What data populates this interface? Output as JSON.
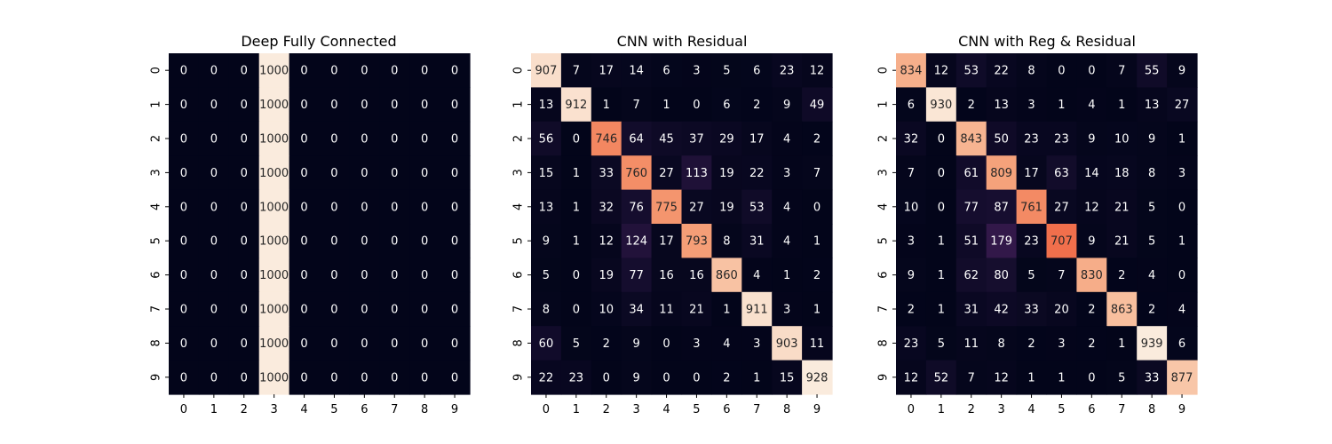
{
  "chart_data": [
    {
      "type": "heatmap",
      "title": "Deep Fully Connected",
      "x_tick_labels": [
        "0",
        "1",
        "2",
        "3",
        "4",
        "5",
        "6",
        "7",
        "8",
        "9"
      ],
      "y_tick_labels": [
        "0",
        "1",
        "2",
        "3",
        "4",
        "5",
        "6",
        "7",
        "8",
        "9"
      ],
      "colormap": "rocket",
      "value_range": [
        0,
        1000
      ],
      "annotated": true,
      "matrix": [
        [
          0,
          0,
          0,
          1000,
          0,
          0,
          0,
          0,
          0,
          0
        ],
        [
          0,
          0,
          0,
          1000,
          0,
          0,
          0,
          0,
          0,
          0
        ],
        [
          0,
          0,
          0,
          1000,
          0,
          0,
          0,
          0,
          0,
          0
        ],
        [
          0,
          0,
          0,
          1000,
          0,
          0,
          0,
          0,
          0,
          0
        ],
        [
          0,
          0,
          0,
          1000,
          0,
          0,
          0,
          0,
          0,
          0
        ],
        [
          0,
          0,
          0,
          1000,
          0,
          0,
          0,
          0,
          0,
          0
        ],
        [
          0,
          0,
          0,
          1000,
          0,
          0,
          0,
          0,
          0,
          0
        ],
        [
          0,
          0,
          0,
          1000,
          0,
          0,
          0,
          0,
          0,
          0
        ],
        [
          0,
          0,
          0,
          1000,
          0,
          0,
          0,
          0,
          0,
          0
        ],
        [
          0,
          0,
          0,
          1000,
          0,
          0,
          0,
          0,
          0,
          0
        ]
      ]
    },
    {
      "type": "heatmap",
      "title": "CNN with Residual",
      "x_tick_labels": [
        "0",
        "1",
        "2",
        "3",
        "4",
        "5",
        "6",
        "7",
        "8",
        "9"
      ],
      "y_tick_labels": [
        "0",
        "1",
        "2",
        "3",
        "4",
        "5",
        "6",
        "7",
        "8",
        "9"
      ],
      "colormap": "rocket",
      "value_range": [
        0,
        928
      ],
      "annotated": true,
      "matrix": [
        [
          907,
          7,
          17,
          14,
          6,
          3,
          5,
          6,
          23,
          12
        ],
        [
          13,
          912,
          1,
          7,
          1,
          0,
          6,
          2,
          9,
          49
        ],
        [
          56,
          0,
          746,
          64,
          45,
          37,
          29,
          17,
          4,
          2
        ],
        [
          15,
          1,
          33,
          760,
          27,
          113,
          19,
          22,
          3,
          7
        ],
        [
          13,
          1,
          32,
          76,
          775,
          27,
          19,
          53,
          4,
          0
        ],
        [
          9,
          1,
          12,
          124,
          17,
          793,
          8,
          31,
          4,
          1
        ],
        [
          5,
          0,
          19,
          77,
          16,
          16,
          860,
          4,
          1,
          2
        ],
        [
          8,
          0,
          10,
          34,
          11,
          21,
          1,
          911,
          3,
          1
        ],
        [
          60,
          5,
          2,
          9,
          0,
          3,
          4,
          3,
          903,
          11
        ],
        [
          22,
          23,
          0,
          9,
          0,
          0,
          2,
          1,
          15,
          928
        ]
      ]
    },
    {
      "type": "heatmap",
      "title": "CNN with Reg & Residual",
      "x_tick_labels": [
        "0",
        "1",
        "2",
        "3",
        "4",
        "5",
        "6",
        "7",
        "8",
        "9"
      ],
      "y_tick_labels": [
        "0",
        "1",
        "2",
        "3",
        "4",
        "5",
        "6",
        "7",
        "8",
        "9"
      ],
      "colormap": "rocket",
      "value_range": [
        0,
        939
      ],
      "annotated": true,
      "matrix": [
        [
          834,
          12,
          53,
          22,
          8,
          0,
          0,
          7,
          55,
          9
        ],
        [
          6,
          930,
          2,
          13,
          3,
          1,
          4,
          1,
          13,
          27
        ],
        [
          32,
          0,
          843,
          50,
          23,
          23,
          9,
          10,
          9,
          1
        ],
        [
          7,
          0,
          61,
          809,
          17,
          63,
          14,
          18,
          8,
          3
        ],
        [
          10,
          0,
          77,
          87,
          761,
          27,
          12,
          21,
          5,
          0
        ],
        [
          3,
          1,
          51,
          179,
          23,
          707,
          9,
          21,
          5,
          1
        ],
        [
          9,
          1,
          62,
          80,
          5,
          7,
          830,
          2,
          4,
          0
        ],
        [
          2,
          1,
          31,
          42,
          33,
          20,
          2,
          863,
          2,
          4
        ],
        [
          23,
          5,
          11,
          8,
          2,
          3,
          2,
          1,
          939,
          6
        ],
        [
          12,
          52,
          7,
          12,
          1,
          1,
          0,
          5,
          33,
          877
        ]
      ]
    }
  ]
}
